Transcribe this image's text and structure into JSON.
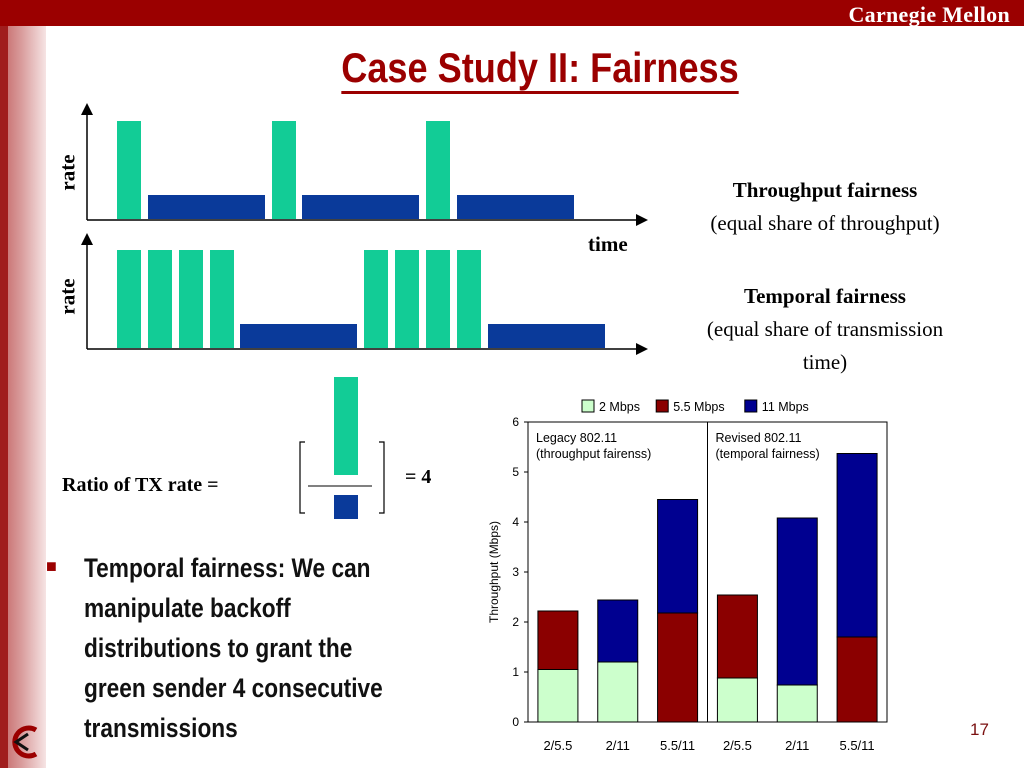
{
  "header": {
    "brand": "Carnegie Mellon"
  },
  "slide": {
    "title": "Case Study II: Fairness",
    "page_number": "17",
    "diagram": {
      "rate_label_top": "rate",
      "rate_label_bottom": "rate",
      "time_label": "time",
      "throughput_title": "Throughput fairness",
      "throughput_desc": "(equal share of throughput)",
      "temporal_title": "Temporal fairness",
      "temporal_desc_line1": "(equal share of transmission",
      "temporal_desc_line2": "time)",
      "ratio_label": "Ratio of TX rate =",
      "ratio_result": "= 4"
    },
    "bullet": "Temporal fairness: We can manipulate backoff distributions to grant the green sender 4 consecutive transmissions",
    "colors": {
      "accent": "#9b0000",
      "green": "#12cc96",
      "blue": "#0a3a9a"
    }
  },
  "chart_data": {
    "type": "bar",
    "stacked": true,
    "ylabel": "Throughput (Mbps)",
    "xlabel": "",
    "ylim": [
      0,
      6
    ],
    "yticks": [
      0,
      1,
      2,
      3,
      4,
      5,
      6
    ],
    "categories": [
      "2/5.5",
      "2/11",
      "5.5/11",
      "2/5.5",
      "2/11",
      "5.5/11"
    ],
    "legend_position": "top",
    "groups": [
      {
        "label_line1": "Legacy 802.11",
        "label_line2": "(throughput fairenss)",
        "categories": [
          0,
          1,
          2
        ]
      },
      {
        "label_line1": "Revised 802.11",
        "label_line2": "(temporal fairness)",
        "categories": [
          3,
          4,
          5
        ]
      }
    ],
    "series": [
      {
        "name": "2 Mbps",
        "color": "#ccffcc",
        "values": [
          1.05,
          1.2,
          0,
          0.88,
          0.74,
          0
        ]
      },
      {
        "name": "5.5 Mbps",
        "color": "#8b0000",
        "values": [
          1.17,
          0,
          2.18,
          1.66,
          0,
          1.7
        ]
      },
      {
        "name": "11 Mbps",
        "color": "#000090",
        "values": [
          0,
          1.24,
          2.27,
          0,
          3.34,
          3.67
        ]
      }
    ]
  }
}
